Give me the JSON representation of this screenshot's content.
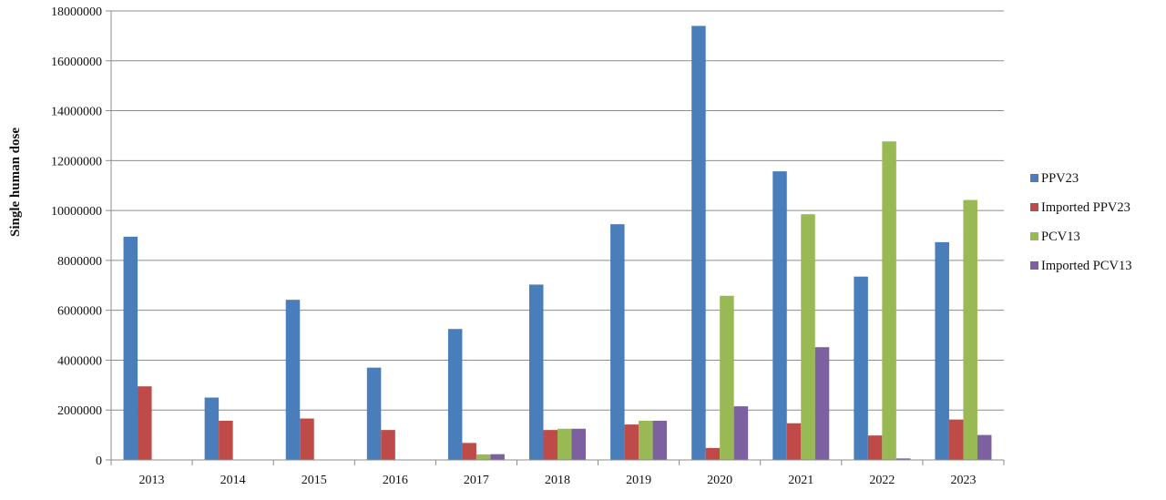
{
  "chart_data": {
    "type": "bar",
    "title": "",
    "xlabel": "",
    "ylabel": "Single human  dose",
    "ylim": [
      0,
      18000000
    ],
    "yticks": [
      0,
      2000000,
      4000000,
      6000000,
      8000000,
      10000000,
      12000000,
      14000000,
      16000000,
      18000000
    ],
    "ytick_labels": [
      "0",
      "2000000",
      "4000000",
      "6000000",
      "8000000",
      "10000000",
      "12000000",
      "14000000",
      "16000000",
      "18000000"
    ],
    "grid": true,
    "legend_position": "right",
    "categories": [
      "2013",
      "2014",
      "2015",
      "2016",
      "2017",
      "2018",
      "2019",
      "2020",
      "2021",
      "2022",
      "2023"
    ],
    "series": [
      {
        "name": "PPV23",
        "color": "#4a7ebb",
        "values": [
          8950000,
          2500000,
          6420000,
          3700000,
          5250000,
          7030000,
          9450000,
          17400000,
          11570000,
          7350000,
          8730000
        ]
      },
      {
        "name": "Imported PPV23",
        "color": "#be4b48",
        "values": [
          2950000,
          1570000,
          1660000,
          1200000,
          680000,
          1200000,
          1420000,
          480000,
          1470000,
          980000,
          1620000
        ]
      },
      {
        "name": "PCV13",
        "color": "#98b954",
        "values": [
          0,
          0,
          0,
          0,
          220000,
          1250000,
          1570000,
          6580000,
          9850000,
          12770000,
          10420000
        ]
      },
      {
        "name": "Imported PCV13",
        "color": "#7d60a0",
        "values": [
          0,
          0,
          0,
          0,
          230000,
          1250000,
          1570000,
          2150000,
          4520000,
          60000,
          1000000
        ]
      }
    ]
  }
}
